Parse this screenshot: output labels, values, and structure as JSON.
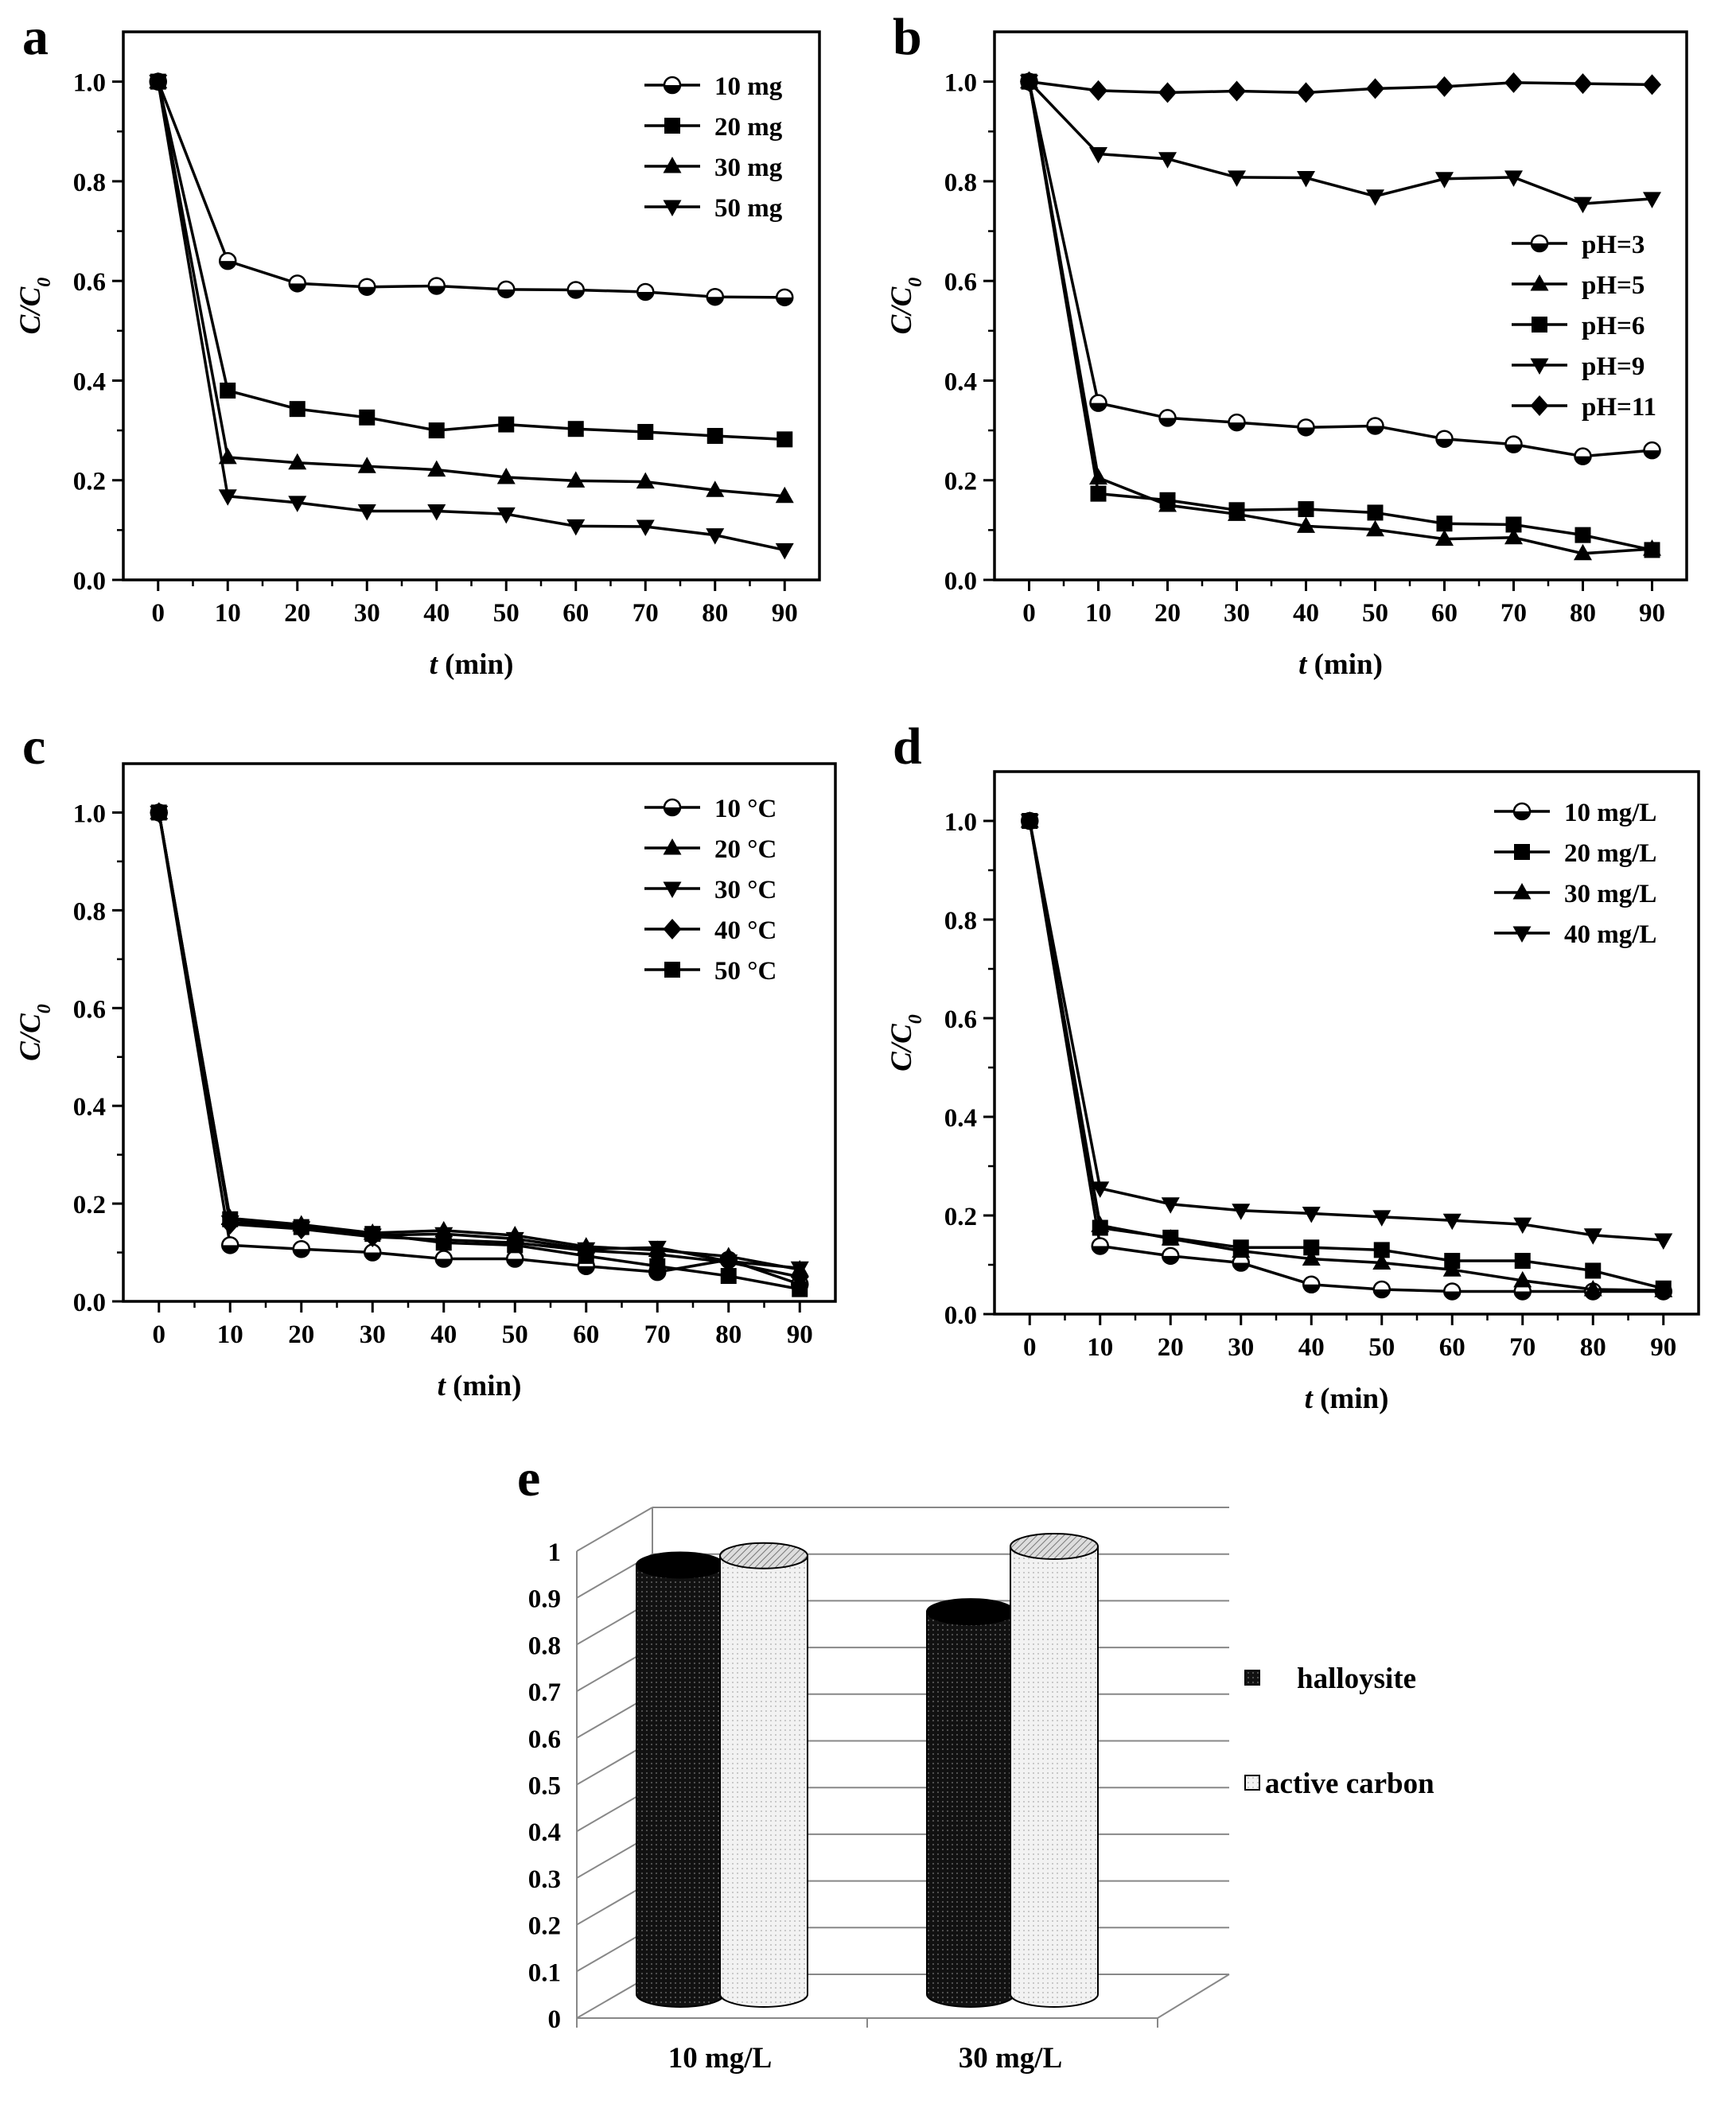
{
  "chart_data": [
    {
      "panel": "a",
      "type": "line",
      "xlabel": "t (min)",
      "ylabel": "C/C0",
      "x": [
        0,
        10,
        20,
        30,
        40,
        50,
        60,
        70,
        80,
        90
      ],
      "xlim": [
        -5,
        95
      ],
      "ylim": [
        0,
        1.1
      ],
      "xticks": [
        "0",
        "10",
        "20",
        "30",
        "40",
        "50",
        "60",
        "70",
        "80",
        "90"
      ],
      "yticks": [
        "0.0",
        "0.2",
        "0.4",
        "0.6",
        "0.8",
        "1.0"
      ],
      "legend_position": "top-right",
      "series": [
        {
          "name": "10 mg",
          "marker": "circle",
          "values": [
            1.0,
            0.64,
            0.595,
            0.588,
            0.59,
            0.583,
            0.582,
            0.578,
            0.568,
            0.567
          ]
        },
        {
          "name": "20 mg",
          "marker": "square",
          "values": [
            1.0,
            0.38,
            0.343,
            0.326,
            0.3,
            0.312,
            0.303,
            0.297,
            0.289,
            0.282
          ]
        },
        {
          "name": "30 mg",
          "marker": "triangle-up",
          "values": [
            1.0,
            0.246,
            0.235,
            0.228,
            0.221,
            0.206,
            0.199,
            0.197,
            0.18,
            0.168
          ]
        },
        {
          "name": "50 mg",
          "marker": "triangle-down",
          "values": [
            1.0,
            0.168,
            0.155,
            0.138,
            0.138,
            0.132,
            0.108,
            0.107,
            0.09,
            0.06
          ]
        }
      ]
    },
    {
      "panel": "b",
      "type": "line",
      "xlabel": "t (min)",
      "ylabel": "C/C0",
      "x": [
        0,
        10,
        20,
        30,
        40,
        50,
        60,
        70,
        80,
        90
      ],
      "xlim": [
        -5,
        95
      ],
      "ylim": [
        0,
        1.1
      ],
      "xticks": [
        "0",
        "10",
        "20",
        "30",
        "40",
        "50",
        "60",
        "70",
        "80",
        "90"
      ],
      "yticks": [
        "0.0",
        "0.2",
        "0.4",
        "0.6",
        "0.8",
        "1.0"
      ],
      "legend_position": "right",
      "series": [
        {
          "name": "pH=3",
          "marker": "circle",
          "values": [
            1.0,
            0.355,
            0.325,
            0.316,
            0.306,
            0.309,
            0.283,
            0.272,
            0.248,
            0.26
          ]
        },
        {
          "name": "pH=5",
          "marker": "triangle-up",
          "values": [
            1.0,
            0.205,
            0.15,
            0.132,
            0.108,
            0.101,
            0.082,
            0.085,
            0.053,
            0.062
          ]
        },
        {
          "name": "pH=6",
          "marker": "square",
          "values": [
            1.0,
            0.173,
            0.16,
            0.14,
            0.142,
            0.135,
            0.113,
            0.111,
            0.09,
            0.06
          ]
        },
        {
          "name": "pH=9",
          "marker": "triangle-down",
          "values": [
            1.0,
            0.855,
            0.845,
            0.808,
            0.807,
            0.77,
            0.805,
            0.808,
            0.755,
            0.765
          ]
        },
        {
          "name": "pH=11",
          "marker": "diamond",
          "values": [
            1.0,
            0.982,
            0.978,
            0.981,
            0.978,
            0.986,
            0.99,
            0.998,
            0.996,
            0.994
          ]
        }
      ]
    },
    {
      "panel": "c",
      "type": "line",
      "xlabel": "t (min)",
      "ylabel": "C/C0",
      "x": [
        0,
        10,
        20,
        30,
        40,
        50,
        60,
        70,
        80,
        90
      ],
      "xlim": [
        -5,
        95
      ],
      "ylim": [
        0,
        1.1
      ],
      "xticks": [
        "0",
        "10",
        "20",
        "30",
        "40",
        "50",
        "60",
        "70",
        "80",
        "90"
      ],
      "yticks": [
        "0.0",
        "0.2",
        "0.4",
        "0.6",
        "0.8",
        "1.0"
      ],
      "legend_position": "top-right",
      "series": [
        {
          "name": "10 °C",
          "marker": "circle",
          "values": [
            1.0,
            0.115,
            0.107,
            0.1,
            0.087,
            0.087,
            0.072,
            0.06,
            0.085,
            0.035
          ]
        },
        {
          "name": "20 °C",
          "marker": "triangle-up",
          "values": [
            1.0,
            0.17,
            0.157,
            0.14,
            0.145,
            0.135,
            0.112,
            0.105,
            0.092,
            0.065
          ]
        },
        {
          "name": "30 °C",
          "marker": "triangle-down",
          "values": [
            1.0,
            0.162,
            0.15,
            0.135,
            0.138,
            0.128,
            0.107,
            0.11,
            0.082,
            0.068
          ]
        },
        {
          "name": "40 °C",
          "marker": "diamond",
          "values": [
            1.0,
            0.158,
            0.148,
            0.132,
            0.126,
            0.12,
            0.104,
            0.096,
            0.08,
            0.05
          ]
        },
        {
          "name": "50 °C",
          "marker": "square",
          "values": [
            1.0,
            0.168,
            0.152,
            0.138,
            0.12,
            0.115,
            0.093,
            0.072,
            0.052,
            0.025
          ]
        }
      ]
    },
    {
      "panel": "d",
      "type": "line",
      "xlabel": "t (min)",
      "ylabel": "C/C0",
      "x": [
        0,
        10,
        20,
        30,
        40,
        50,
        60,
        70,
        80,
        90
      ],
      "xlim": [
        -5,
        95
      ],
      "ylim": [
        0,
        1.1
      ],
      "xticks": [
        "0",
        "10",
        "20",
        "30",
        "40",
        "50",
        "60",
        "70",
        "80",
        "90"
      ],
      "yticks": [
        "0.0",
        "0.2",
        "0.4",
        "0.6",
        "0.8",
        "1.0"
      ],
      "legend_position": "top-right",
      "series": [
        {
          "name": "10 mg/L",
          "marker": "circle",
          "values": [
            1.0,
            0.138,
            0.118,
            0.104,
            0.06,
            0.05,
            0.046,
            0.046,
            0.046,
            0.046
          ]
        },
        {
          "name": "20 mg/L",
          "marker": "square",
          "values": [
            1.0,
            0.175,
            0.155,
            0.135,
            0.135,
            0.13,
            0.108,
            0.108,
            0.088,
            0.052
          ]
        },
        {
          "name": "30 mg/L",
          "marker": "triangle-up",
          "values": [
            1.0,
            0.18,
            0.153,
            0.128,
            0.112,
            0.104,
            0.09,
            0.068,
            0.05,
            0.048
          ]
        },
        {
          "name": "40 mg/L",
          "marker": "triangle-down",
          "values": [
            1.0,
            0.255,
            0.223,
            0.21,
            0.204,
            0.197,
            0.19,
            0.182,
            0.16,
            0.15
          ]
        }
      ]
    },
    {
      "panel": "e",
      "type": "bar",
      "style": "3d-cylinder",
      "categories": [
        "10 mg/L",
        "30 mg/L"
      ],
      "yticks": [
        "0",
        "0.1",
        "0.2",
        "0.3",
        "0.4",
        "0.5",
        "0.6",
        "0.7",
        "0.8",
        "0.9",
        "1"
      ],
      "ylim": [
        0,
        1
      ],
      "legend_position": "right",
      "series": [
        {
          "name": "halloysite",
          "fill": "#1a1a1a",
          "values": [
            0.96,
            0.86
          ]
        },
        {
          "name": "active carbon",
          "fill": "#e8e8e8",
          "values": [
            0.98,
            1.0
          ]
        }
      ]
    }
  ],
  "figure": {
    "panel_labels": [
      "a",
      "b",
      "c",
      "d",
      "e"
    ]
  }
}
